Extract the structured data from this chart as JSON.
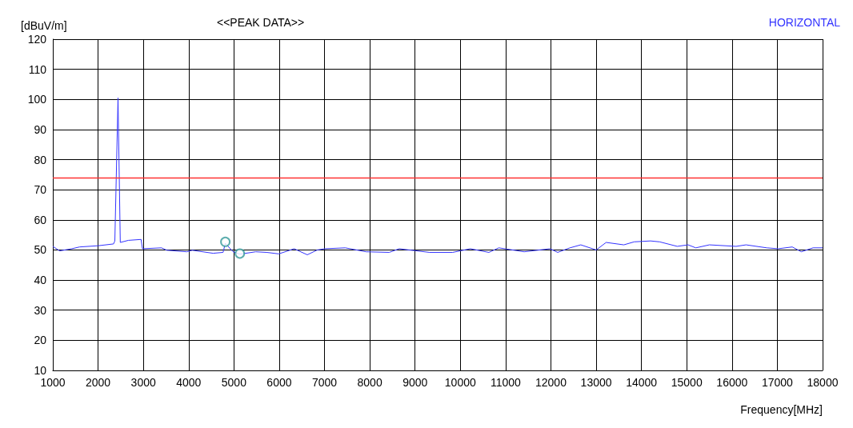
{
  "chart_data": {
    "type": "line",
    "title": "<<PEAK DATA>>",
    "subtitle": "HORIZONTAL",
    "xlabel": "Frequency[MHz]",
    "ylabel": "[dBuV/m]",
    "xlim": [
      1000,
      18000
    ],
    "xticks": [
      1000,
      2000,
      3000,
      4000,
      5000,
      6000,
      7000,
      8000,
      9000,
      10000,
      11000,
      12000,
      13000,
      14000,
      15000,
      16000,
      17000,
      18000
    ],
    "ylim": [
      10,
      120
    ],
    "yticks": [
      10,
      20,
      30,
      40,
      50,
      60,
      70,
      80,
      90,
      100,
      110,
      120
    ],
    "grid": true,
    "marker": "none",
    "line_style": "solid",
    "ref_lines": [
      {
        "axis": "y",
        "value": 74,
        "color": "#ff3333"
      }
    ],
    "series": [
      {
        "color": "#3333ff",
        "x": [
          1000,
          1150,
          1420,
          1590,
          2000,
          2340,
          2370,
          2440,
          2490,
          2670,
          2950,
          2980,
          3400,
          3520,
          3960,
          4080,
          4540,
          4760,
          4810,
          4980,
          5130,
          5480,
          5720,
          5990,
          6330,
          6620,
          6840,
          7010,
          7460,
          7920,
          8430,
          8650,
          8870,
          9320,
          9830,
          10220,
          10630,
          10850,
          11410,
          11980,
          12150,
          12420,
          12660,
          13000,
          13220,
          13610,
          13840,
          14200,
          14400,
          14790,
          15030,
          15200,
          15500,
          16090,
          16310,
          16770,
          17020,
          17330,
          17530,
          17790,
          18000
        ],
        "values": [
          51.2,
          49.7,
          50.4,
          51,
          51.4,
          52,
          53,
          100.5,
          52.5,
          53.2,
          53.5,
          50.4,
          50.7,
          49.9,
          49.4,
          49.9,
          48.9,
          49.2,
          52.2,
          49.4,
          48.6,
          49.4,
          49.2,
          48.7,
          50.4,
          48.4,
          50,
          50.4,
          50.7,
          49.4,
          49.2,
          50.4,
          50,
          49.2,
          49.2,
          50.4,
          49.2,
          50.7,
          49.4,
          50.4,
          49.2,
          50.7,
          51.7,
          50,
          52.5,
          51.7,
          52.7,
          53,
          52.7,
          51.2,
          51.7,
          50.7,
          51.7,
          51.2,
          51.7,
          50.7,
          50.4,
          51,
          49.4,
          50.7,
          50.7
        ]
      },
      {
        "type": "scatter",
        "color": "#339999",
        "marker": "circle",
        "x": [
          4810,
          5130
        ],
        "values": [
          52.7,
          48.8
        ]
      }
    ]
  }
}
